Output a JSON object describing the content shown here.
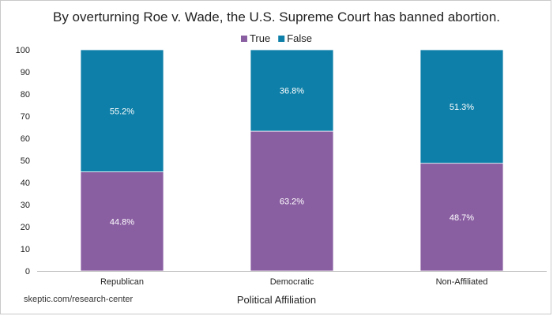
{
  "chart_data": {
    "type": "bar",
    "stacked": true,
    "title": "By overturning Roe v. Wade, the U.S. Supreme Court has banned abortion.",
    "xlabel": "Political Affiliation",
    "ylabel": "",
    "ylim": [
      0,
      100
    ],
    "yticks": [
      0,
      10,
      20,
      30,
      40,
      50,
      60,
      70,
      80,
      90,
      100
    ],
    "categories": [
      "Republican",
      "Democratic",
      "Non-Affiliated"
    ],
    "series": [
      {
        "name": "True",
        "color": "#8a5fa2",
        "values": [
          44.8,
          63.2,
          48.7
        ],
        "labels": [
          "44.8%",
          "63.2%",
          "48.7%"
        ]
      },
      {
        "name": "False",
        "color": "#0e7fa8",
        "values": [
          55.2,
          36.8,
          51.3
        ],
        "labels": [
          "55.2%",
          "36.8%",
          "51.3%"
        ]
      }
    ],
    "legend_position": "top-center",
    "grid": false
  },
  "source": "skeptic.com/research-center"
}
